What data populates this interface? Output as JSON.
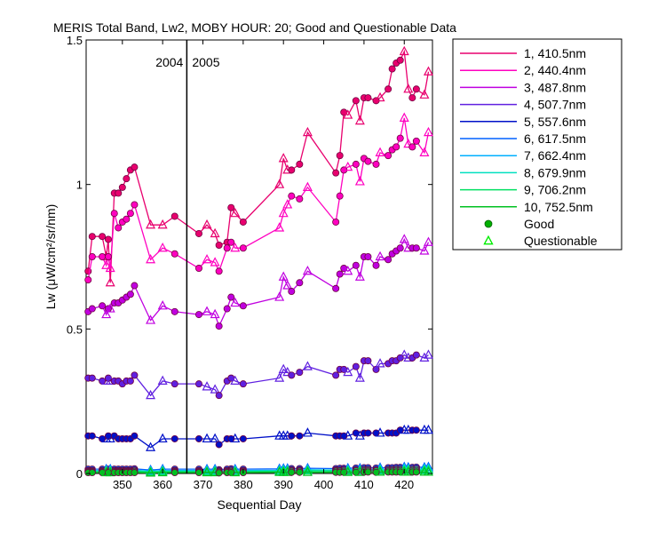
{
  "chart_data": {
    "type": "line",
    "title": "MERIS Total Band,  Lw2, MOBY HOUR: 20;  Good and Questionable Data",
    "xlabel": "Sequential Day",
    "ylabel": "Lw (μW/cm²/sr/nm)",
    "xlim": [
      341,
      427
    ],
    "ylim": [
      0,
      1.5
    ],
    "xticks": [
      350,
      360,
      370,
      380,
      390,
      400,
      410,
      420
    ],
    "yticks": [
      0,
      0.5,
      1,
      1.5
    ],
    "ytick_labels": [
      "0",
      "0.5",
      "1",
      "1.5"
    ],
    "grid": false,
    "year_divider": {
      "x": 366,
      "left_label": "2004",
      "right_label": "2005"
    },
    "legend": {
      "position": "outside-right",
      "good_label": "Good",
      "questionable_label": "Questionable",
      "good_color": "#00b000",
      "questionable_color": "#00ee00"
    },
    "x": [
      341.5,
      342.5,
      345,
      346,
      346.5,
      347,
      348,
      349,
      350,
      351,
      352,
      353,
      357,
      360,
      363,
      369,
      371,
      373,
      374,
      376,
      377,
      378,
      380,
      389,
      390,
      391,
      392,
      394,
      396,
      403,
      404,
      405,
      406,
      408,
      409,
      410,
      411,
      413,
      414,
      416,
      417,
      418,
      419,
      420,
      421,
      422,
      423,
      425,
      426
    ],
    "quality": [
      "G",
      "G",
      "G",
      "Q",
      "G",
      "Q",
      "G",
      "G",
      "G",
      "G",
      "G",
      "G",
      "Q",
      "Q",
      "G",
      "G",
      "Q",
      "Q",
      "G",
      "G",
      "G",
      "Q",
      "G",
      "Q",
      "Q",
      "Q",
      "G",
      "G",
      "Q",
      "G",
      "G",
      "G",
      "Q",
      "G",
      "Q",
      "G",
      "G",
      "G",
      "Q",
      "G",
      "G",
      "G",
      "G",
      "Q",
      "Q",
      "G",
      "G",
      "Q",
      "Q"
    ],
    "series": [
      {
        "name": "1, 410.5nm",
        "color": "#e8006e",
        "values": [
          0.7,
          0.82,
          0.82,
          0.75,
          0.81,
          0.66,
          0.97,
          0.97,
          0.99,
          1.02,
          1.05,
          1.06,
          0.86,
          0.86,
          0.89,
          0.83,
          0.86,
          0.83,
          0.79,
          0.8,
          0.92,
          0.9,
          0.87,
          1.0,
          1.09,
          1.05,
          1.05,
          1.07,
          1.18,
          1.04,
          1.1,
          1.25,
          1.24,
          1.29,
          1.22,
          1.3,
          1.3,
          1.29,
          1.3,
          1.33,
          1.4,
          1.42,
          1.43,
          1.46,
          1.33,
          1.3,
          1.33,
          1.31,
          1.39
        ]
      },
      {
        "name": "2, 440.4nm",
        "color": "#ff00c0",
        "values": [
          0.67,
          0.75,
          0.75,
          0.72,
          0.75,
          0.71,
          0.9,
          0.85,
          0.87,
          0.88,
          0.9,
          0.93,
          0.74,
          0.78,
          0.76,
          0.71,
          0.74,
          0.73,
          0.7,
          0.78,
          0.8,
          0.78,
          0.78,
          0.85,
          0.9,
          0.93,
          0.96,
          0.95,
          0.99,
          0.87,
          0.96,
          1.05,
          1.06,
          1.07,
          1.01,
          1.09,
          1.08,
          1.07,
          1.11,
          1.1,
          1.12,
          1.13,
          1.16,
          1.23,
          1.14,
          1.13,
          1.15,
          1.11,
          1.18
        ]
      },
      {
        "name": "3, 487.8nm",
        "color": "#c000e0",
        "values": [
          0.56,
          0.57,
          0.58,
          0.55,
          0.57,
          0.57,
          0.59,
          0.59,
          0.6,
          0.61,
          0.62,
          0.65,
          0.53,
          0.58,
          0.56,
          0.55,
          0.56,
          0.55,
          0.51,
          0.57,
          0.61,
          0.59,
          0.58,
          0.61,
          0.68,
          0.65,
          0.63,
          0.66,
          0.7,
          0.64,
          0.69,
          0.71,
          0.7,
          0.72,
          0.68,
          0.75,
          0.75,
          0.72,
          0.75,
          0.74,
          0.76,
          0.77,
          0.78,
          0.81,
          0.78,
          0.78,
          0.78,
          0.77,
          0.8
        ]
      },
      {
        "name": "4, 507.7nm",
        "color": "#6020e0",
        "values": [
          0.33,
          0.33,
          0.32,
          0.32,
          0.33,
          0.32,
          0.32,
          0.32,
          0.31,
          0.32,
          0.32,
          0.34,
          0.27,
          0.32,
          0.31,
          0.31,
          0.3,
          0.29,
          0.27,
          0.32,
          0.33,
          0.32,
          0.31,
          0.33,
          0.36,
          0.35,
          0.34,
          0.35,
          0.37,
          0.34,
          0.36,
          0.36,
          0.35,
          0.37,
          0.33,
          0.39,
          0.39,
          0.36,
          0.38,
          0.38,
          0.39,
          0.39,
          0.4,
          0.41,
          0.4,
          0.4,
          0.41,
          0.4,
          0.41
        ]
      },
      {
        "name": "5, 557.6nm",
        "color": "#0010c8",
        "values": [
          0.13,
          0.13,
          0.12,
          0.12,
          0.13,
          0.12,
          0.13,
          0.12,
          0.12,
          0.12,
          0.12,
          0.13,
          0.09,
          0.12,
          0.12,
          0.12,
          0.12,
          0.12,
          0.1,
          0.12,
          0.12,
          0.12,
          0.12,
          0.13,
          0.13,
          0.13,
          0.13,
          0.13,
          0.14,
          0.13,
          0.13,
          0.13,
          0.13,
          0.14,
          0.13,
          0.14,
          0.14,
          0.14,
          0.14,
          0.14,
          0.14,
          0.14,
          0.15,
          0.15,
          0.15,
          0.15,
          0.15,
          0.15,
          0.15
        ]
      },
      {
        "name": "6, 617.5nm",
        "color": "#0060ff",
        "values": [
          0.015,
          0.015,
          0.015,
          0.015,
          0.015,
          0.015,
          0.015,
          0.015,
          0.015,
          0.015,
          0.015,
          0.016,
          0.012,
          0.015,
          0.015,
          0.015,
          0.015,
          0.015,
          0.013,
          0.015,
          0.016,
          0.015,
          0.015,
          0.016,
          0.017,
          0.017,
          0.017,
          0.017,
          0.018,
          0.017,
          0.018,
          0.018,
          0.018,
          0.019,
          0.018,
          0.02,
          0.02,
          0.019,
          0.02,
          0.02,
          0.02,
          0.021,
          0.021,
          0.022,
          0.021,
          0.021,
          0.022,
          0.021,
          0.022
        ]
      },
      {
        "name": "7, 662.4nm",
        "color": "#00b0ff",
        "values": [
          0.01,
          0.01,
          0.01,
          0.01,
          0.01,
          0.01,
          0.01,
          0.01,
          0.01,
          0.01,
          0.01,
          0.011,
          0.008,
          0.01,
          0.01,
          0.01,
          0.01,
          0.01,
          0.009,
          0.01,
          0.011,
          0.01,
          0.01,
          0.011,
          0.012,
          0.012,
          0.012,
          0.012,
          0.013,
          0.012,
          0.012,
          0.013,
          0.013,
          0.013,
          0.012,
          0.014,
          0.014,
          0.013,
          0.014,
          0.014,
          0.014,
          0.015,
          0.015,
          0.016,
          0.015,
          0.015,
          0.016,
          0.015,
          0.016
        ]
      },
      {
        "name": "8, 679.9nm",
        "color": "#00e0c0",
        "values": [
          0.009,
          0.009,
          0.009,
          0.009,
          0.009,
          0.009,
          0.009,
          0.009,
          0.009,
          0.009,
          0.009,
          0.01,
          0.007,
          0.009,
          0.009,
          0.009,
          0.009,
          0.009,
          0.008,
          0.009,
          0.01,
          0.009,
          0.009,
          0.01,
          0.011,
          0.011,
          0.011,
          0.011,
          0.012,
          0.011,
          0.011,
          0.012,
          0.012,
          0.012,
          0.011,
          0.013,
          0.013,
          0.012,
          0.013,
          0.013,
          0.013,
          0.014,
          0.014,
          0.015,
          0.014,
          0.014,
          0.015,
          0.014,
          0.015
        ]
      },
      {
        "name": "9, 706.2nm",
        "color": "#00e060",
        "values": [
          0.006,
          0.006,
          0.006,
          0.006,
          0.006,
          0.006,
          0.006,
          0.006,
          0.006,
          0.006,
          0.006,
          0.007,
          0.005,
          0.006,
          0.006,
          0.006,
          0.006,
          0.006,
          0.005,
          0.006,
          0.007,
          0.006,
          0.006,
          0.007,
          0.008,
          0.008,
          0.008,
          0.008,
          0.009,
          0.008,
          0.008,
          0.008,
          0.008,
          0.009,
          0.008,
          0.009,
          0.009,
          0.009,
          0.009,
          0.009,
          0.009,
          0.01,
          0.01,
          0.01,
          0.01,
          0.01,
          0.01,
          0.01,
          0.01
        ]
      },
      {
        "name": "10, 752.5nm",
        "color": "#00c020",
        "values": [
          0.003,
          0.003,
          0.003,
          0.003,
          0.003,
          0.003,
          0.003,
          0.003,
          0.003,
          0.003,
          0.003,
          0.003,
          0.002,
          0.003,
          0.003,
          0.003,
          0.003,
          0.003,
          0.002,
          0.003,
          0.003,
          0.003,
          0.003,
          0.004,
          0.004,
          0.004,
          0.004,
          0.004,
          0.004,
          0.004,
          0.004,
          0.004,
          0.004,
          0.004,
          0.004,
          0.005,
          0.005,
          0.004,
          0.005,
          0.005,
          0.005,
          0.005,
          0.005,
          0.005,
          0.005,
          0.005,
          0.005,
          0.005,
          0.005
        ]
      }
    ]
  }
}
